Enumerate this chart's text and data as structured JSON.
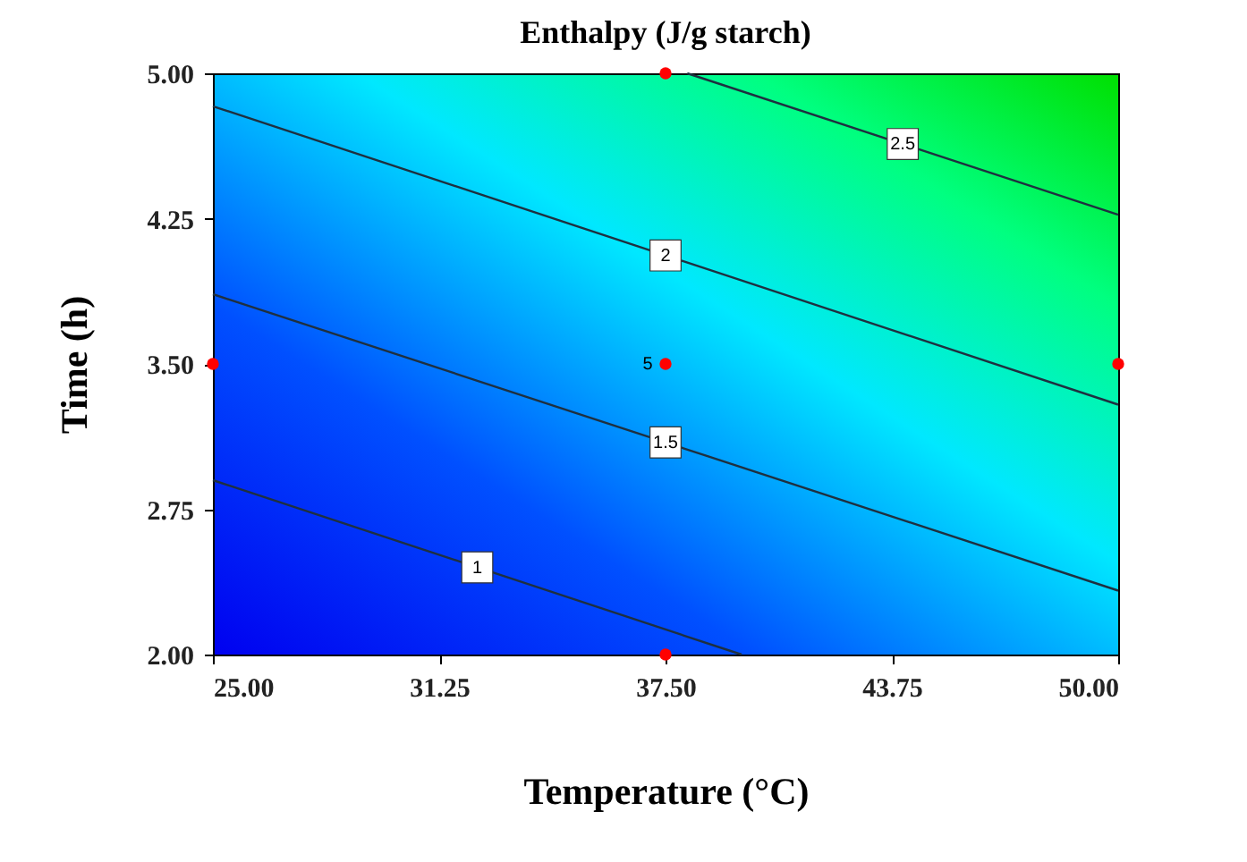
{
  "chart_data": {
    "type": "line",
    "title": "Enthalpy (J/g starch)",
    "xlabel": "Temperature (°C)",
    "ylabel": "Time (h)",
    "xlim": [
      25,
      50
    ],
    "ylim": [
      2,
      5
    ],
    "xticks": [
      {
        "value": 25,
        "label": "25.00"
      },
      {
        "value": 31.25,
        "label": "31.25"
      },
      {
        "value": 37.5,
        "label": "37.50"
      },
      {
        "value": 43.75,
        "label": "43.75"
      },
      {
        "value": 50,
        "label": "50.00"
      }
    ],
    "yticks": [
      {
        "value": 2,
        "label": "2.00"
      },
      {
        "value": 2.75,
        "label": "2.75"
      },
      {
        "value": 3.5,
        "label": "3.50"
      },
      {
        "value": 4.25,
        "label": "4.25"
      },
      {
        "value": 5,
        "label": "5.00"
      }
    ],
    "series": [
      {
        "name": "1",
        "color": "#1e3040",
        "x": [
          25,
          39.6
        ],
        "values": [
          2.9,
          2.0
        ]
      },
      {
        "name": "1.5",
        "color": "#1e3040",
        "x": [
          25,
          50
        ],
        "values": [
          3.86,
          2.33
        ]
      },
      {
        "name": "2",
        "color": "#1e3040",
        "x": [
          25,
          50
        ],
        "values": [
          4.83,
          3.29
        ]
      },
      {
        "name": "2.5",
        "color": "#1e3040",
        "x": [
          38.1,
          50
        ],
        "values": [
          5.0,
          4.27
        ]
      },
      {
        "type": "scatter",
        "marker": "circle",
        "color": "#ff0000",
        "x": [
          37.5,
          25,
          37.5,
          50,
          37.5
        ],
        "values": [
          5.0,
          3.5,
          3.5,
          3.5,
          2.0
        ]
      }
    ],
    "annotations": [
      {
        "text": "5",
        "x": 37.5,
        "y": 3.5
      }
    ],
    "line_style": "solid",
    "grid": false
  }
}
